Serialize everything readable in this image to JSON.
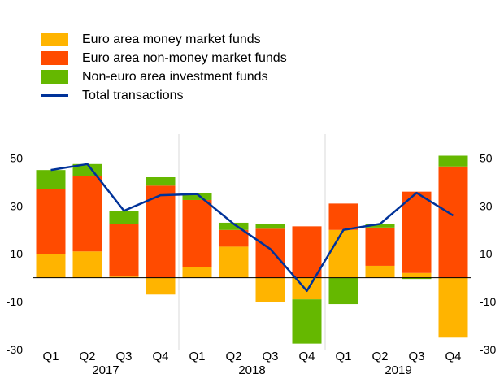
{
  "chart_data": {
    "type": "bar",
    "subtype": "stacked-bar-with-line",
    "categories": [
      "Q1",
      "Q2",
      "Q3",
      "Q4",
      "Q1",
      "Q2",
      "Q3",
      "Q4",
      "Q1",
      "Q2",
      "Q3",
      "Q4"
    ],
    "years": [
      {
        "label": "2017",
        "quarters": 4
      },
      {
        "label": "2018",
        "quarters": 4
      },
      {
        "label": "2019",
        "quarters": 4
      }
    ],
    "ylim": [
      -30,
      60
    ],
    "yticks": [
      -30,
      -10,
      10,
      30,
      50
    ],
    "series": [
      {
        "name": "Euro area money market funds",
        "kind": "bar",
        "color": "#ffb400",
        "values": [
          10,
          11,
          0.5,
          -7,
          4.5,
          13,
          -10,
          -9,
          20,
          5,
          2,
          -25
        ]
      },
      {
        "name": "Euro area non-money market funds",
        "kind": "bar",
        "color": "#ff4b00",
        "values": [
          27,
          31.5,
          22,
          38.5,
          28,
          7,
          20.5,
          21.5,
          11,
          16,
          34,
          46.5
        ]
      },
      {
        "name": "Non-euro area investment funds",
        "kind": "bar",
        "color": "#65b800",
        "values": [
          8,
          5,
          5.5,
          3.5,
          3,
          3,
          2,
          -18.5,
          -11,
          1.5,
          -0.5,
          4.5
        ]
      },
      {
        "name": "Total transactions",
        "kind": "line",
        "color": "#003299",
        "values": [
          45,
          47.5,
          28,
          34.5,
          35,
          22.5,
          12,
          -5.5,
          20,
          22.5,
          35.5,
          26
        ]
      }
    ],
    "legend_position": "top-left",
    "grid": false
  }
}
